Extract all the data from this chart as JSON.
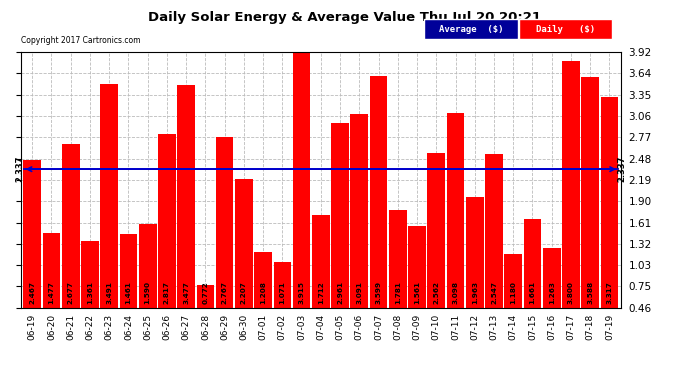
{
  "title": "Daily Solar Energy & Average Value Thu Jul 20 20:21",
  "copyright": "Copyright 2017 Cartronics.com",
  "categories": [
    "06-19",
    "06-20",
    "06-21",
    "06-22",
    "06-23",
    "06-24",
    "06-25",
    "06-26",
    "06-27",
    "06-28",
    "06-29",
    "06-30",
    "07-01",
    "07-02",
    "07-03",
    "07-04",
    "07-05",
    "07-06",
    "07-07",
    "07-08",
    "07-09",
    "07-10",
    "07-11",
    "07-12",
    "07-13",
    "07-14",
    "07-15",
    "07-16",
    "07-17",
    "07-18",
    "07-19"
  ],
  "values": [
    2.467,
    1.477,
    2.677,
    1.361,
    3.491,
    1.461,
    1.59,
    2.817,
    3.477,
    0.772,
    2.767,
    2.207,
    1.208,
    1.071,
    3.915,
    1.712,
    2.961,
    3.091,
    3.599,
    1.781,
    1.561,
    2.562,
    3.098,
    1.963,
    2.547,
    1.18,
    1.661,
    1.263,
    3.8,
    3.588,
    3.317
  ],
  "average": 2.337,
  "bar_color": "#ff0000",
  "average_line_color": "#0000cc",
  "grid_color": "#bbbbbb",
  "background_color": "#ffffff",
  "ylim_min": 0.46,
  "ylim_max": 3.92,
  "yticks": [
    0.46,
    0.75,
    1.03,
    1.32,
    1.61,
    1.9,
    2.19,
    2.48,
    2.77,
    3.06,
    3.35,
    3.64,
    3.92
  ],
  "legend_avg_color": "#000099",
  "legend_daily_color": "#ff0000",
  "legend_avg_text": "Average  ($)",
  "legend_daily_text": "Daily   ($)",
  "avg_label": "2.337"
}
